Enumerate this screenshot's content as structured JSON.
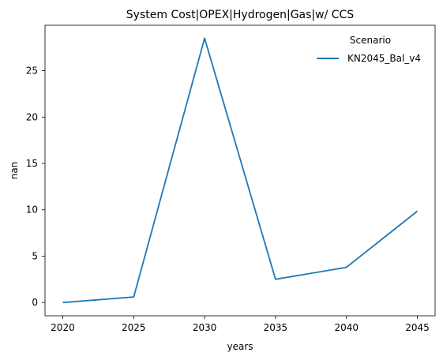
{
  "chart_data": {
    "type": "line",
    "title": "System Cost|OPEX|Hydrogen|Gas|w/ CCS",
    "xlabel": "years",
    "ylabel": "nan",
    "x": [
      2020,
      2025,
      2030,
      2035,
      2040,
      2045
    ],
    "xticks": [
      2020,
      2025,
      2030,
      2035,
      2040,
      2045
    ],
    "yticks": [
      0,
      5,
      10,
      15,
      20,
      25
    ],
    "xlim": [
      2018.75,
      2046.25
    ],
    "ylim": [
      -1.43,
      29.9
    ],
    "grid": false,
    "legend": {
      "title": "Scenario",
      "placement": "top-right"
    },
    "series": [
      {
        "name": "KN2045_Bal_v4",
        "color": "#1f77b4",
        "values": [
          0.0,
          0.6,
          28.5,
          2.5,
          3.8,
          9.85
        ]
      }
    ]
  }
}
